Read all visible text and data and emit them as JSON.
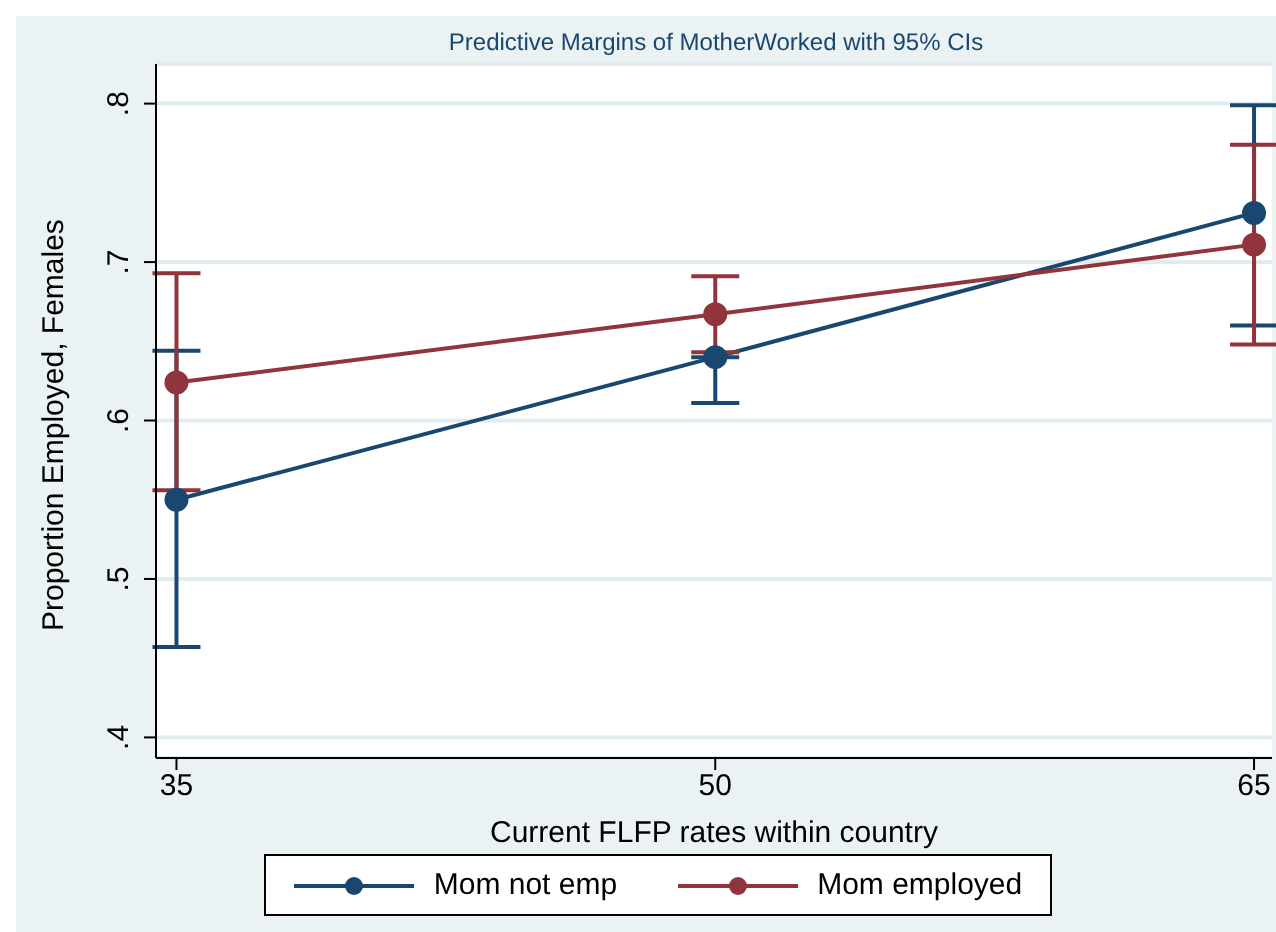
{
  "chart_data": {
    "type": "line",
    "title": "Predictive Margins of MotherWorked with 95% CIs",
    "xlabel": "Current FLFP rates within country",
    "ylabel": "Proportion Employed, Females",
    "x": [
      35,
      50,
      65
    ],
    "series": [
      {
        "name": "Mom not emp",
        "color": "#1a476f",
        "values": [
          0.55,
          0.64,
          0.731
        ],
        "errors": [
          [
            0.457,
            0.644
          ],
          [
            0.611,
            0.64
          ],
          [
            0.66,
            0.799
          ]
        ]
      },
      {
        "name": "Mom employed",
        "color": "#90353b",
        "values": [
          0.624,
          0.667,
          0.711
        ],
        "errors": [
          [
            0.556,
            0.693
          ],
          [
            0.643,
            0.691
          ],
          [
            0.648,
            0.774
          ]
        ]
      }
    ],
    "xlim": [
      34.43,
      65.5
    ],
    "xticks": [
      35,
      50,
      65
    ],
    "ylim": [
      0.387,
      0.825
    ],
    "yticks": [
      {
        "value": 0.4,
        "label": ".4"
      },
      {
        "value": 0.5,
        "label": ".5"
      },
      {
        "value": 0.6,
        "label": ".6"
      },
      {
        "value": 0.7,
        "label": ".7"
      },
      {
        "value": 0.8,
        "label": ".8"
      }
    ],
    "grid": "y",
    "legend": "bottom",
    "marker": "circle",
    "line_style": "solid"
  }
}
